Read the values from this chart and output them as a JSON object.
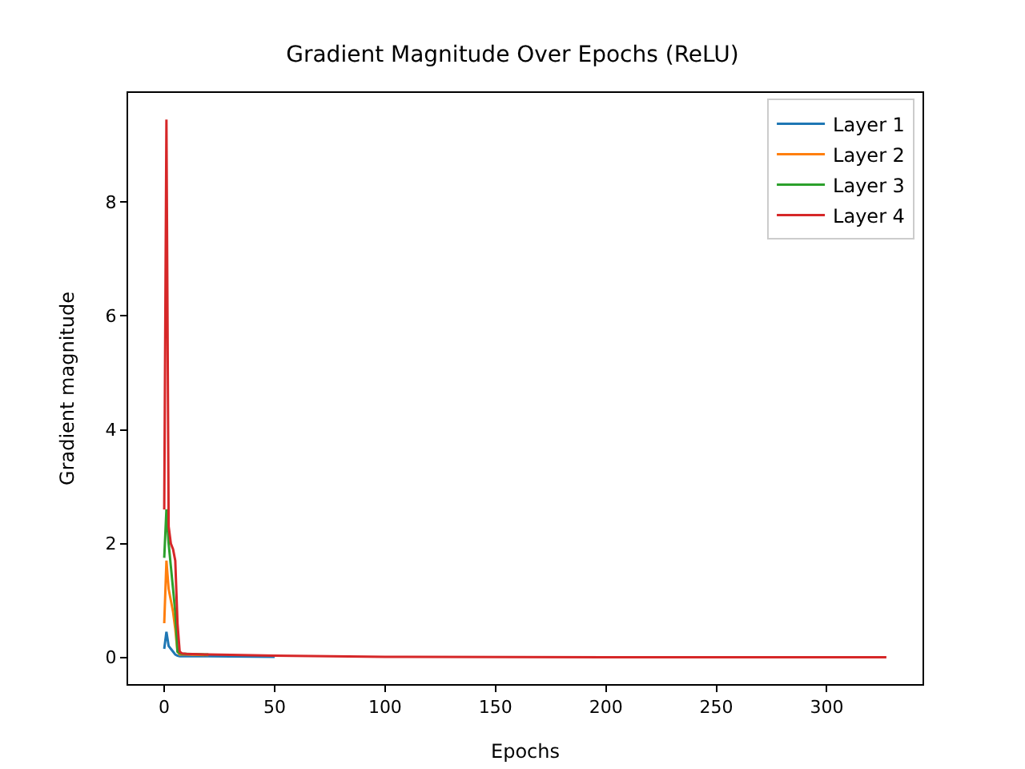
{
  "chart_data": {
    "type": "line",
    "title": "Gradient Magnitude Over Epochs (ReLU)",
    "xlabel": "Epochs",
    "ylabel": "Gradient magnitude",
    "x": [
      0,
      1,
      2,
      3,
      4,
      5,
      6,
      7,
      8,
      10,
      20,
      50,
      100,
      200,
      327
    ],
    "series": [
      {
        "name": "Layer 1",
        "color": "#1f77b4",
        "values": [
          0.15,
          0.45,
          0.2,
          0.15,
          0.1,
          0.05,
          0.03,
          0.02,
          0.02,
          0.02,
          0.02,
          0.01,
          null,
          null,
          null
        ]
      },
      {
        "name": "Layer 2",
        "color": "#ff7f0e",
        "values": [
          0.6,
          1.7,
          1.2,
          1.0,
          0.8,
          0.5,
          0.1,
          0.05,
          0.05,
          0.05,
          0.04,
          null,
          null,
          null,
          null
        ]
      },
      {
        "name": "Layer 3",
        "color": "#2ca02c",
        "values": [
          1.75,
          2.6,
          2.0,
          1.6,
          1.2,
          0.8,
          0.1,
          0.07,
          0.06,
          0.06,
          0.05,
          null,
          null,
          null,
          null
        ]
      },
      {
        "name": "Layer 4",
        "color": "#d62728",
        "values": [
          2.6,
          9.45,
          2.3,
          2.0,
          1.9,
          1.7,
          0.6,
          0.1,
          0.07,
          0.06,
          0.05,
          0.03,
          0.01,
          0.0,
          0.0
        ]
      }
    ],
    "xlim": [
      -16.35,
      343.35
    ],
    "xticks": [
      0,
      50,
      100,
      150,
      200,
      250,
      300
    ],
    "ylim": [
      -0.47,
      9.92
    ],
    "yticks": [
      0,
      2,
      4,
      6,
      8
    ],
    "grid": false,
    "legend": "top right"
  }
}
